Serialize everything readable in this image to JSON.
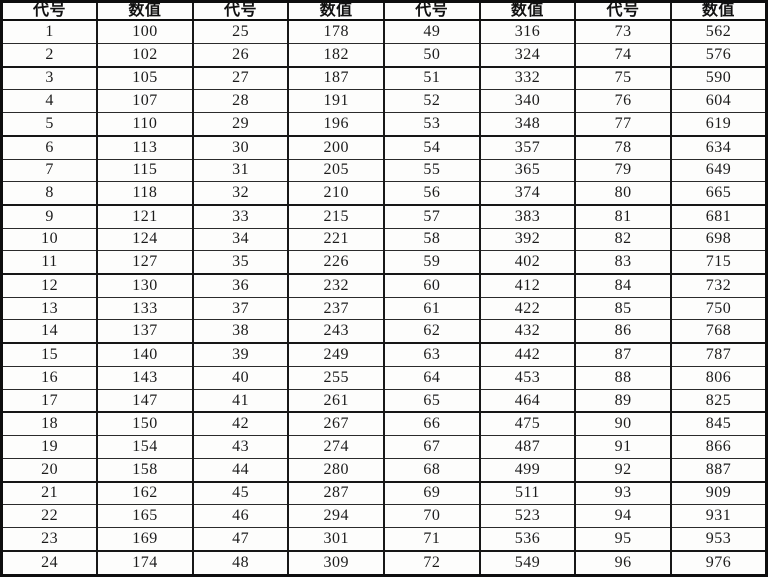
{
  "table": {
    "headers": [
      "代号",
      "数值",
      "代号",
      "数值",
      "代号",
      "数值",
      "代号",
      "数值"
    ],
    "rows": [
      [
        1,
        100,
        25,
        178,
        49,
        316,
        73,
        562
      ],
      [
        2,
        102,
        26,
        182,
        50,
        324,
        74,
        576
      ],
      [
        3,
        105,
        27,
        187,
        51,
        332,
        75,
        590
      ],
      [
        4,
        107,
        28,
        191,
        52,
        340,
        76,
        604
      ],
      [
        5,
        110,
        29,
        196,
        53,
        348,
        77,
        619
      ],
      [
        6,
        113,
        30,
        200,
        54,
        357,
        78,
        634
      ],
      [
        7,
        115,
        31,
        205,
        55,
        365,
        79,
        649
      ],
      [
        8,
        118,
        32,
        210,
        56,
        374,
        80,
        665
      ],
      [
        9,
        121,
        33,
        215,
        57,
        383,
        81,
        681
      ],
      [
        10,
        124,
        34,
        221,
        58,
        392,
        82,
        698
      ],
      [
        11,
        127,
        35,
        226,
        59,
        402,
        83,
        715
      ],
      [
        12,
        130,
        36,
        232,
        60,
        412,
        84,
        732
      ],
      [
        13,
        133,
        37,
        237,
        61,
        422,
        85,
        750
      ],
      [
        14,
        137,
        38,
        243,
        62,
        432,
        86,
        768
      ],
      [
        15,
        140,
        39,
        249,
        63,
        442,
        87,
        787
      ],
      [
        16,
        143,
        40,
        255,
        64,
        453,
        88,
        806
      ],
      [
        17,
        147,
        41,
        261,
        65,
        464,
        89,
        825
      ],
      [
        18,
        150,
        42,
        267,
        66,
        475,
        90,
        845
      ],
      [
        19,
        154,
        43,
        274,
        67,
        487,
        91,
        866
      ],
      [
        20,
        158,
        44,
        280,
        68,
        499,
        92,
        887
      ],
      [
        21,
        162,
        45,
        287,
        69,
        511,
        93,
        909
      ],
      [
        22,
        165,
        46,
        294,
        70,
        523,
        94,
        931
      ],
      [
        23,
        169,
        47,
        301,
        71,
        536,
        95,
        953
      ],
      [
        24,
        174,
        48,
        309,
        72,
        549,
        96,
        976
      ]
    ]
  }
}
